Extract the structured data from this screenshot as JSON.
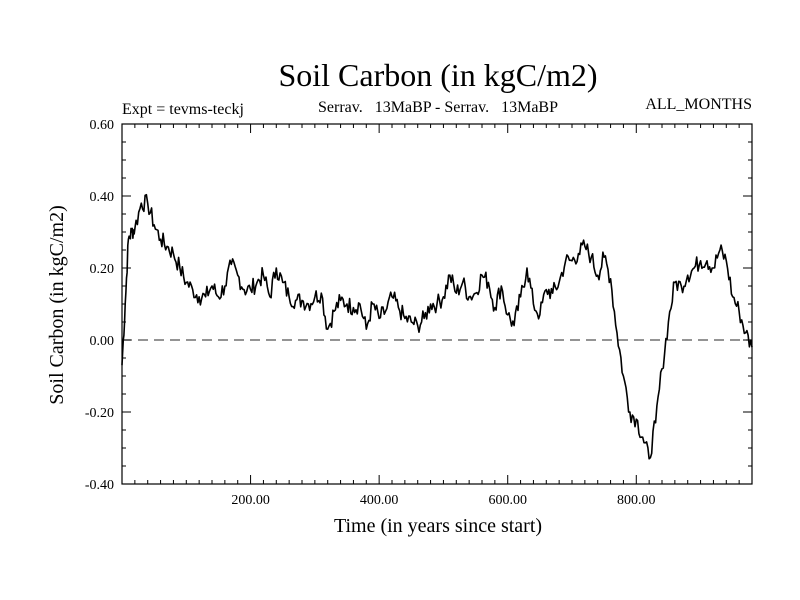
{
  "chart_data": {
    "type": "line",
    "title": "Soil Carbon (in kgC/m2)",
    "subtitle_left": "Expt = tevms-teckj",
    "subtitle_center": "Serrav.   13MaBP - Serrav.   13MaBP",
    "subtitle_right": "ALL_MONTHS",
    "xlabel": "Time (in years since start)",
    "ylabel": "Soil Carbon (in kgC/m2)",
    "xlim": [
      0,
      980
    ],
    "ylim": [
      -0.4,
      0.6
    ],
    "xticks": [
      200,
      400,
      600,
      800
    ],
    "xtick_labels": [
      "200.00",
      "400.00",
      "600.00",
      "800.00"
    ],
    "yticks": [
      0.6,
      0.4,
      0.2,
      0.0,
      -0.2,
      -0.4
    ],
    "ytick_labels": [
      "0.60",
      "0.40",
      "0.20",
      "0.00",
      "-0.20",
      "-0.40"
    ],
    "reference_line": 0.0,
    "series": [
      {
        "name": "Soil Carbon",
        "x": [
          0,
          5,
          10,
          15,
          20,
          30,
          40,
          50,
          60,
          70,
          80,
          90,
          100,
          110,
          120,
          130,
          140,
          150,
          160,
          170,
          180,
          190,
          200,
          210,
          220,
          230,
          240,
          250,
          260,
          270,
          280,
          290,
          300,
          310,
          320,
          330,
          340,
          350,
          360,
          370,
          380,
          390,
          400,
          410,
          420,
          430,
          440,
          450,
          460,
          470,
          480,
          490,
          500,
          510,
          520,
          530,
          540,
          550,
          560,
          570,
          580,
          590,
          600,
          610,
          620,
          630,
          640,
          650,
          660,
          670,
          680,
          690,
          700,
          710,
          720,
          730,
          740,
          750,
          760,
          770,
          780,
          790,
          800,
          810,
          820,
          830,
          840,
          850,
          860,
          870,
          880,
          890,
          900,
          910,
          920,
          930,
          940,
          950,
          960,
          970,
          980
        ],
        "values": [
          -0.07,
          0.1,
          0.28,
          0.3,
          0.31,
          0.38,
          0.38,
          0.32,
          0.28,
          0.26,
          0.24,
          0.2,
          0.16,
          0.14,
          0.12,
          0.12,
          0.15,
          0.12,
          0.15,
          0.21,
          0.18,
          0.14,
          0.14,
          0.16,
          0.18,
          0.12,
          0.2,
          0.16,
          0.12,
          0.11,
          0.11,
          0.1,
          0.12,
          0.13,
          0.03,
          0.08,
          0.11,
          0.1,
          0.09,
          0.1,
          0.03,
          0.1,
          0.06,
          0.08,
          0.12,
          0.09,
          0.06,
          0.05,
          0.04,
          0.06,
          0.1,
          0.1,
          0.12,
          0.18,
          0.13,
          0.16,
          0.12,
          0.13,
          0.18,
          0.16,
          0.09,
          0.15,
          0.07,
          0.04,
          0.12,
          0.2,
          0.1,
          0.07,
          0.14,
          0.13,
          0.16,
          0.22,
          0.22,
          0.24,
          0.26,
          0.23,
          0.18,
          0.23,
          0.17,
          0.02,
          -0.1,
          -0.2,
          -0.22,
          -0.27,
          -0.33,
          -0.23,
          -0.08,
          0.05,
          0.16,
          0.15,
          0.18,
          0.2,
          0.22,
          0.22,
          0.2,
          0.25,
          0.22,
          0.12,
          0.08,
          0.02,
          -0.02
        ]
      }
    ]
  }
}
